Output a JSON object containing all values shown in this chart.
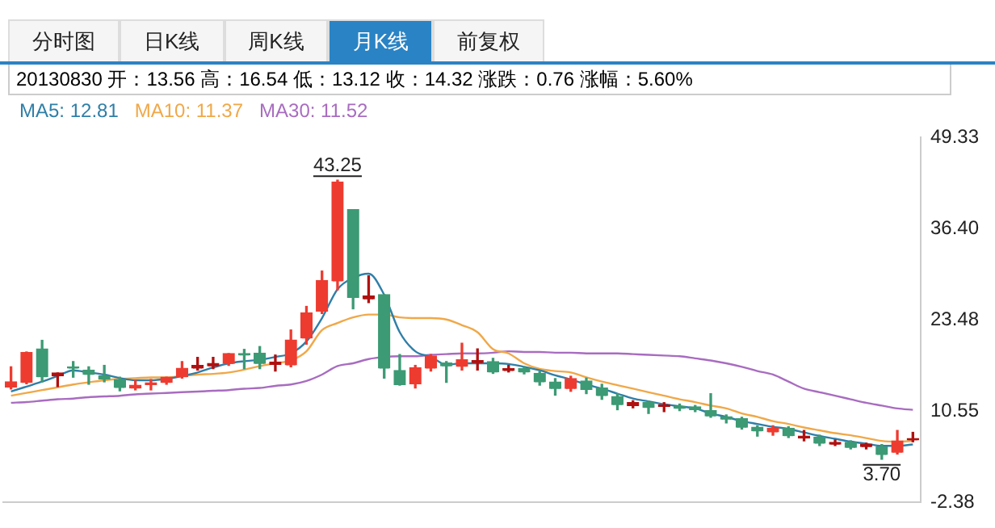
{
  "chart_data": {
    "type": "candlestick",
    "annotations": [
      "分时图",
      "日K线",
      "周K线",
      "月K线",
      "前复权",
      "20130830 开：13.56 高：16.54 低：13.12 收：14.32 涨跌：0.76 涨幅：5.60%",
      {
        "text": "43.25",
        "y": 43.25
      },
      {
        "text": "3.70",
        "y": 3.7
      }
    ],
    "categories": [
      null,
      null,
      null,
      null,
      null,
      null,
      null,
      null,
      null,
      null,
      null,
      null,
      null,
      null,
      null,
      null,
      null,
      null,
      null,
      null,
      null,
      null,
      null,
      null,
      null,
      null,
      null,
      null,
      null,
      null,
      null,
      null,
      null,
      null,
      null,
      null,
      null,
      null,
      null,
      null,
      null,
      null,
      null,
      null,
      null,
      null,
      null,
      null,
      null,
      null,
      null,
      null,
      null,
      null,
      null,
      null,
      null,
      null,
      null
    ],
    "ohlc": [
      [
        13.86,
        16.8,
        13.66,
        14.67
      ],
      [
        14.53,
        18.9,
        14.4,
        18.81
      ],
      [
        19.34,
        20.55,
        14.67,
        15.33
      ],
      [
        15.47,
        15.93,
        14.0,
        15.93
      ],
      [
        16.8,
        17.54,
        15.33,
        16.54
      ],
      [
        16.34,
        16.8,
        14.33,
        15.67
      ],
      [
        15.53,
        17.0,
        14.67,
        15.0
      ],
      [
        15.0,
        15.33,
        13.4,
        13.8
      ],
      [
        13.73,
        14.87,
        13.53,
        14.2
      ],
      [
        14.2,
        15.0,
        13.53,
        14.53
      ],
      [
        14.53,
        15.33,
        14.33,
        15.33
      ],
      [
        15.33,
        17.54,
        15.2,
        16.6
      ],
      [
        16.54,
        18.14,
        16.34,
        17.0
      ],
      [
        16.87,
        18.14,
        16.54,
        17.27
      ],
      [
        17.2,
        18.67,
        17.0,
        18.67
      ],
      [
        18.67,
        19.27,
        16.54,
        18.4
      ],
      [
        18.74,
        19.67,
        16.54,
        17.2
      ],
      [
        17.14,
        18.47,
        16.2,
        17.47
      ],
      [
        17.0,
        22.02,
        16.8,
        20.61
      ],
      [
        20.81,
        25.36,
        20.01,
        24.42
      ],
      [
        24.62,
        30.37,
        24.35,
        29.03
      ],
      [
        28.9,
        43.25,
        27.7,
        43.0
      ],
      [
        39.06,
        39.06,
        25.02,
        26.56
      ],
      [
        26.36,
        29.7,
        25.9,
        26.83
      ],
      [
        27.03,
        27.03,
        15.2,
        16.54
      ],
      [
        16.27,
        18.54,
        14.2,
        14.2
      ],
      [
        14.33,
        17.0,
        13.8,
        16.67
      ],
      [
        16.54,
        18.54,
        16.2,
        18.34
      ],
      [
        17.34,
        17.54,
        14.6,
        16.94
      ],
      [
        16.8,
        20.14,
        16.34,
        17.8
      ],
      [
        17.34,
        19.34,
        16.34,
        17.67
      ],
      [
        17.54,
        18.0,
        15.87,
        16.0
      ],
      [
        16.2,
        17.0,
        16.07,
        16.53
      ],
      [
        16.53,
        16.8,
        15.8,
        16.0
      ],
      [
        15.87,
        16.13,
        14.2,
        14.6
      ],
      [
        14.66,
        15.13,
        12.79,
        13.66
      ],
      [
        13.66,
        15.46,
        13.33,
        15.13
      ],
      [
        14.8,
        15.2,
        13.0,
        13.53
      ],
      [
        13.8,
        14.33,
        12.19,
        12.66
      ],
      [
        12.59,
        12.99,
        10.72,
        11.39
      ],
      [
        11.32,
        11.99,
        10.99,
        11.72
      ],
      [
        11.72,
        11.92,
        10.19,
        10.99
      ],
      [
        11.12,
        11.72,
        10.45,
        11.39
      ],
      [
        11.19,
        11.52,
        10.59,
        10.85
      ],
      [
        11.12,
        11.32,
        10.45,
        10.65
      ],
      [
        10.59,
        12.99,
        9.65,
        9.78
      ],
      [
        9.72,
        9.98,
        8.85,
        9.32
      ],
      [
        9.45,
        9.65,
        7.98,
        8.18
      ],
      [
        8.25,
        8.45,
        6.98,
        7.65
      ],
      [
        7.51,
        8.45,
        7.11,
        8.11
      ],
      [
        8.11,
        8.31,
        6.78,
        6.98
      ],
      [
        6.71,
        7.78,
        6.31,
        6.98
      ],
      [
        6.84,
        7.11,
        5.64,
        5.91
      ],
      [
        5.84,
        6.44,
        5.64,
        6.11
      ],
      [
        6.11,
        6.31,
        5.17,
        5.31
      ],
      [
        5.44,
        5.98,
        5.17,
        5.84
      ],
      [
        5.44,
        5.78,
        3.7,
        4.3
      ],
      [
        4.64,
        7.78,
        4.44,
        6.31
      ],
      [
        6.44,
        7.51,
        6.18,
        6.64
      ]
    ],
    "colors": [
      "#ee3b30",
      "#ee3b30",
      "#3c9a74",
      "#b01010",
      "#3c9a74",
      "#3c9a74",
      "#3c9a74",
      "#3c9a74",
      "#ee3b30",
      "#ee3b30",
      "#ee3b30",
      "#ee3b30",
      "#b01010",
      "#b01010",
      "#ee3b30",
      "#3c9a74",
      "#3c9a74",
      "#b01010",
      "#ee3b30",
      "#ee3b30",
      "#ee3b30",
      "#ee3b30",
      "#3c9a74",
      "#b01010",
      "#3c9a74",
      "#3c9a74",
      "#ee3b30",
      "#ee3b30",
      "#3c9a74",
      "#ee3b30",
      "#b01010",
      "#3c9a74",
      "#b01010",
      "#3c9a74",
      "#3c9a74",
      "#3c9a74",
      "#ee3b30",
      "#3c9a74",
      "#3c9a74",
      "#3c9a74",
      "#b01010",
      "#3c9a74",
      "#b01010",
      "#3c9a74",
      "#3c9a74",
      "#3c9a74",
      "#3c9a74",
      "#3c9a74",
      "#3c9a74",
      "#ee3b30",
      "#3c9a74",
      "#b01010",
      "#3c9a74",
      "#b01010",
      "#3c9a74",
      "#b01010",
      "#3c9a74",
      "#ee3b30",
      "#b01010"
    ],
    "series": [
      {
        "name": "MA5: 12.81",
        "type": "line",
        "color": "#2f7fa8",
        "values": [
          13.3,
          14.0,
          14.7,
          15.5,
          16.3,
          16.0,
          15.7,
          15.2,
          14.9,
          14.9,
          15.1,
          15.5,
          16.0,
          16.7,
          17.3,
          17.6,
          17.8,
          18.2,
          18.7,
          20.4,
          23.7,
          27.8,
          29.4,
          30.0,
          27.0,
          21.7,
          19.0,
          18.2,
          17.1,
          17.3,
          17.3,
          17.3,
          17.2,
          16.8,
          16.3,
          15.6,
          15.0,
          14.3,
          13.7,
          13.0,
          12.3,
          11.9,
          11.5,
          11.2,
          10.9,
          10.2,
          9.7,
          9.1,
          8.7,
          8.3,
          8.0,
          7.5,
          7.0,
          6.6,
          6.2,
          5.9,
          5.6,
          5.6,
          5.8
        ]
      },
      {
        "name": "MA10: 11.37",
        "type": "line",
        "color": "#f0a848",
        "values": [
          12.7,
          13.1,
          13.5,
          13.9,
          14.3,
          14.6,
          14.9,
          15.1,
          15.2,
          15.3,
          15.3,
          15.5,
          15.7,
          15.8,
          16.0,
          16.4,
          16.9,
          17.3,
          17.7,
          19.0,
          22.0,
          23.0,
          23.8,
          24.2,
          24.2,
          23.8,
          23.7,
          23.7,
          23.5,
          22.7,
          21.7,
          19.3,
          18.7,
          17.3,
          16.5,
          16.2,
          16.0,
          15.3,
          14.7,
          14.2,
          13.7,
          13.2,
          12.7,
          12.2,
          11.8,
          11.3,
          10.9,
          10.2,
          9.7,
          9.1,
          8.7,
          8.2,
          7.8,
          7.4,
          7.1,
          6.7,
          6.3,
          6.2,
          6.3
        ]
      },
      {
        "name": "MA30: 11.52",
        "type": "line",
        "color": "#a86cc0",
        "values": [
          11.7,
          11.8,
          12.0,
          12.2,
          12.3,
          12.5,
          12.6,
          12.7,
          12.9,
          13.0,
          13.1,
          13.2,
          13.3,
          13.4,
          13.5,
          13.7,
          13.8,
          14.1,
          14.3,
          14.8,
          15.7,
          16.9,
          17.3,
          17.9,
          18.2,
          18.3,
          18.3,
          18.5,
          18.6,
          18.7,
          18.7,
          18.8,
          19.0,
          18.9,
          18.9,
          18.8,
          18.8,
          18.7,
          18.7,
          18.7,
          18.6,
          18.5,
          18.4,
          18.3,
          18.0,
          17.7,
          17.3,
          16.8,
          16.2,
          15.7,
          14.7,
          13.7,
          13.2,
          12.7,
          12.2,
          11.7,
          11.3,
          10.9,
          10.7
        ]
      }
    ],
    "ylim": [
      -2.38,
      49.33
    ],
    "yticks": [
      49.33,
      {
        "value": 36.4,
        "label": "36.40"
      },
      23.48,
      10.55,
      -2.38
    ],
    "legend": "top left"
  }
}
